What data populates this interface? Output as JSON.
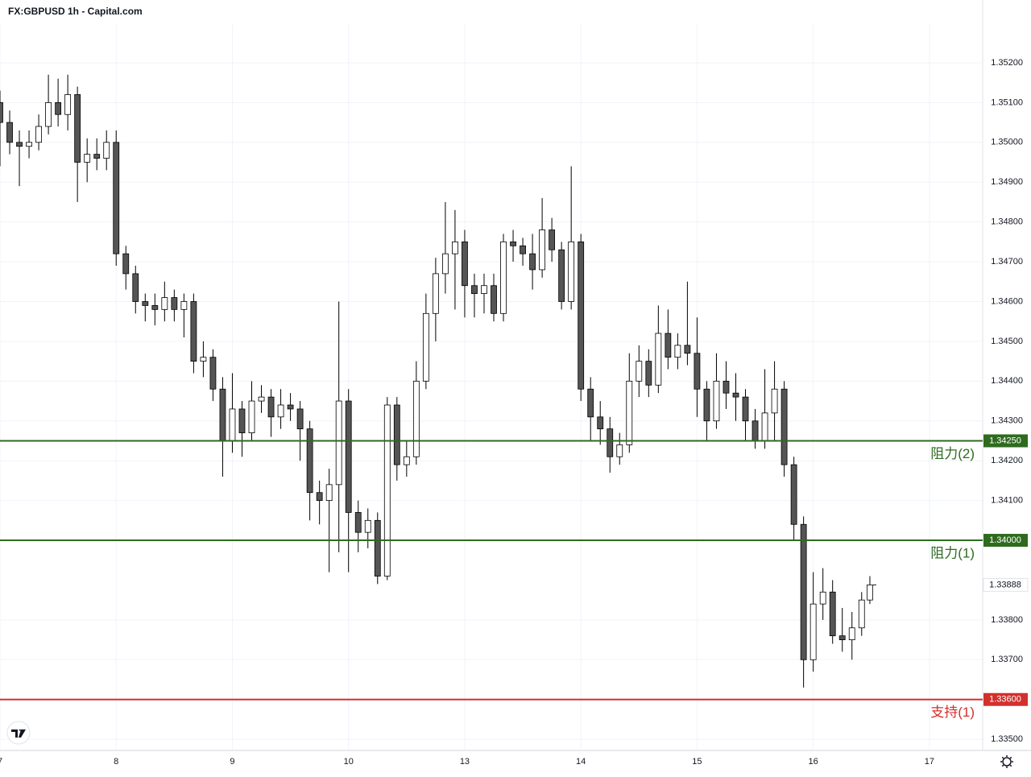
{
  "chart_data": {
    "type": "candlestick",
    "title": "FX:GBPUSD 1h - Capital.com",
    "x": [
      0,
      2,
      4,
      6,
      8,
      10,
      12,
      14,
      16,
      18,
      20,
      22,
      24,
      26,
      28,
      30,
      32,
      34,
      36,
      38,
      40,
      42,
      44,
      46,
      48,
      50,
      52,
      54,
      56,
      58,
      60,
      62,
      64,
      66,
      68,
      70,
      72,
      74,
      76,
      78,
      80,
      82,
      84,
      86,
      88,
      90,
      92,
      94,
      96,
      98,
      100,
      102,
      104,
      106,
      108,
      110,
      112,
      114,
      116,
      118,
      120,
      122,
      124,
      126,
      128,
      130,
      132,
      134,
      136,
      138,
      140,
      142,
      144,
      146,
      148,
      150,
      152,
      154,
      156,
      158,
      160,
      162,
      164,
      166,
      168,
      170,
      172,
      174,
      176,
      178,
      179.7
    ],
    "open": [
      1.351,
      1.3505,
      1.35,
      1.3499,
      1.35,
      1.3504,
      1.351,
      1.3507,
      1.3512,
      1.3495,
      1.3497,
      1.3496,
      1.35,
      1.3472,
      1.3467,
      1.346,
      1.3459,
      1.3458,
      1.3461,
      1.3458,
      1.346,
      1.3445,
      1.3446,
      1.3438,
      1.3425,
      1.3433,
      1.3427,
      1.3435,
      1.3436,
      1.3431,
      1.3434,
      1.3433,
      1.3428,
      1.3412,
      1.341,
      1.3414,
      1.3435,
      1.3407,
      1.3402,
      1.3405,
      1.3391,
      1.3434,
      1.3419,
      1.3421,
      1.344,
      1.3457,
      1.3467,
      1.3472,
      1.3475,
      1.3464,
      1.3462,
      1.3464,
      1.3457,
      1.3475,
      1.3474,
      1.3472,
      1.3468,
      1.3478,
      1.3473,
      1.346,
      1.3475,
      1.3438,
      1.3431,
      1.3428,
      1.3421,
      1.3424,
      1.344,
      1.3445,
      1.3439,
      1.3452,
      1.3446,
      1.3449,
      1.3447,
      1.3438,
      1.343,
      1.344,
      1.3437,
      1.3436,
      1.343,
      1.3425,
      1.3432,
      1.3438,
      1.3419,
      1.3404,
      1.337,
      1.3384,
      1.3387,
      1.3376,
      1.3375,
      1.3378,
      1.3385
    ],
    "high": [
      1.3513,
      1.3508,
      1.3503,
      1.3503,
      1.3507,
      1.3517,
      1.3516,
      1.3517,
      1.3514,
      1.3501,
      1.3501,
      1.3503,
      1.3503,
      1.3474,
      1.3469,
      1.3462,
      1.3462,
      1.3465,
      1.3463,
      1.3462,
      1.3462,
      1.345,
      1.3448,
      1.3441,
      1.3442,
      1.3435,
      1.344,
      1.3439,
      1.3438,
      1.3438,
      1.3437,
      1.3435,
      1.343,
      1.3415,
      1.3418,
      1.346,
      1.3438,
      1.341,
      1.3408,
      1.3407,
      1.3436,
      1.3436,
      1.3425,
      1.3445,
      1.3462,
      1.3471,
      1.3485,
      1.3483,
      1.3478,
      1.3467,
      1.3467,
      1.3467,
      1.3477,
      1.3478,
      1.3476,
      1.3477,
      1.3486,
      1.3481,
      1.3475,
      1.3494,
      1.3477,
      1.3441,
      1.3435,
      1.3431,
      1.3427,
      1.3447,
      1.3449,
      1.3448,
      1.3459,
      1.3458,
      1.3452,
      1.3465,
      1.3456,
      1.344,
      1.3447,
      1.3445,
      1.3442,
      1.3438,
      1.3433,
      1.3443,
      1.3445,
      1.344,
      1.3421,
      1.3406,
      1.3392,
      1.3393,
      1.339,
      1.3383,
      1.3382,
      1.3387,
      1.3391
    ],
    "low": [
      1.3494,
      1.3497,
      1.3489,
      1.3496,
      1.3498,
      1.3502,
      1.3504,
      1.3503,
      1.3485,
      1.349,
      1.3493,
      1.3493,
      1.3469,
      1.3463,
      1.3457,
      1.3455,
      1.3454,
      1.3455,
      1.3455,
      1.3451,
      1.3442,
      1.3441,
      1.3435,
      1.3416,
      1.3422,
      1.3421,
      1.3425,
      1.3432,
      1.3426,
      1.3428,
      1.343,
      1.342,
      1.3405,
      1.3404,
      1.3392,
      1.3397,
      1.3392,
      1.3397,
      1.3398,
      1.3389,
      1.339,
      1.3415,
      1.3416,
      1.3419,
      1.3438,
      1.345,
      1.3462,
      1.3458,
      1.3456,
      1.3456,
      1.3457,
      1.3455,
      1.3455,
      1.347,
      1.3469,
      1.3463,
      1.3466,
      1.347,
      1.3458,
      1.3458,
      1.3435,
      1.3425,
      1.3424,
      1.3417,
      1.3419,
      1.3422,
      1.3436,
      1.3436,
      1.3437,
      1.3443,
      1.3443,
      1.3444,
      1.3431,
      1.3425,
      1.3428,
      1.3433,
      1.343,
      1.3425,
      1.3423,
      1.3423,
      1.3425,
      1.3416,
      1.34,
      1.3363,
      1.3367,
      1.338,
      1.3374,
      1.3372,
      1.337,
      1.3376,
      1.3384
    ],
    "close": [
      1.3505,
      1.35,
      1.3499,
      1.35,
      1.3504,
      1.351,
      1.3507,
      1.3512,
      1.3495,
      1.3497,
      1.3496,
      1.35,
      1.3472,
      1.3467,
      1.346,
      1.3459,
      1.3458,
      1.3461,
      1.3458,
      1.346,
      1.3445,
      1.3446,
      1.3438,
      1.3425,
      1.3433,
      1.3427,
      1.3435,
      1.3436,
      1.3431,
      1.3434,
      1.3433,
      1.3428,
      1.3412,
      1.341,
      1.3414,
      1.3435,
      1.3407,
      1.3402,
      1.3405,
      1.3391,
      1.3434,
      1.3419,
      1.3421,
      1.344,
      1.3457,
      1.3467,
      1.3472,
      1.3475,
      1.3464,
      1.3462,
      1.3464,
      1.3457,
      1.3475,
      1.3474,
      1.3472,
      1.3468,
      1.3478,
      1.3473,
      1.346,
      1.3475,
      1.3438,
      1.3431,
      1.3428,
      1.3421,
      1.3424,
      1.344,
      1.3445,
      1.3439,
      1.3452,
      1.3446,
      1.3449,
      1.3447,
      1.3438,
      1.343,
      1.344,
      1.3437,
      1.3436,
      1.343,
      1.3425,
      1.3432,
      1.3438,
      1.3419,
      1.3404,
      1.337,
      1.3384,
      1.3387,
      1.3376,
      1.3375,
      1.3378,
      1.3385,
      1.33888
    ],
    "up_color": "#ffffff",
    "down_color": "#555555",
    "wick_color": "#000000",
    "xlim": [
      0,
      203
    ],
    "xticks": [
      {
        "value": 0,
        "label": "7"
      },
      {
        "value": 24,
        "label": "8"
      },
      {
        "value": 48,
        "label": "9"
      },
      {
        "value": 72,
        "label": "10"
      },
      {
        "value": 96,
        "label": "13"
      },
      {
        "value": 120,
        "label": "14"
      },
      {
        "value": 144,
        "label": "15"
      },
      {
        "value": 168,
        "label": "16"
      },
      {
        "value": 192,
        "label": "17"
      }
    ],
    "ylim": [
      1.33472,
      1.35297
    ],
    "yticks": [
      {
        "value": 1.335,
        "label": "1.33500"
      },
      {
        "value": 1.336,
        "label": "1.33600"
      },
      {
        "value": 1.337,
        "label": "1.33700"
      },
      {
        "value": 1.338,
        "label": "1.33800"
      },
      {
        "value": 1.34,
        "label": "1.34000"
      },
      {
        "value": 1.341,
        "label": "1.34100"
      },
      {
        "value": 1.342,
        "label": "1.34200"
      },
      {
        "value": 1.343,
        "label": "1.34300"
      },
      {
        "value": 1.344,
        "label": "1.34400"
      },
      {
        "value": 1.345,
        "label": "1.34500"
      },
      {
        "value": 1.346,
        "label": "1.34600"
      },
      {
        "value": 1.347,
        "label": "1.34700"
      },
      {
        "value": 1.348,
        "label": "1.34800"
      },
      {
        "value": 1.349,
        "label": "1.34900"
      },
      {
        "value": 1.35,
        "label": "1.35000"
      },
      {
        "value": 1.351,
        "label": "1.35100"
      },
      {
        "value": 1.352,
        "label": "1.35200"
      }
    ],
    "grid": true,
    "levels": [
      {
        "name": "阻力(2)",
        "value": 1.3425,
        "label": "1.34250",
        "color": "#2e6b1f"
      },
      {
        "name": "阻力(1)",
        "value": 1.34,
        "label": "1.34000",
        "color": "#2e6b1f"
      },
      {
        "name": "支持(1)",
        "value": 1.336,
        "label": "1.33600",
        "color": "#d3302c"
      }
    ],
    "last_price": {
      "value": 1.33888,
      "label": "1.33888"
    }
  }
}
